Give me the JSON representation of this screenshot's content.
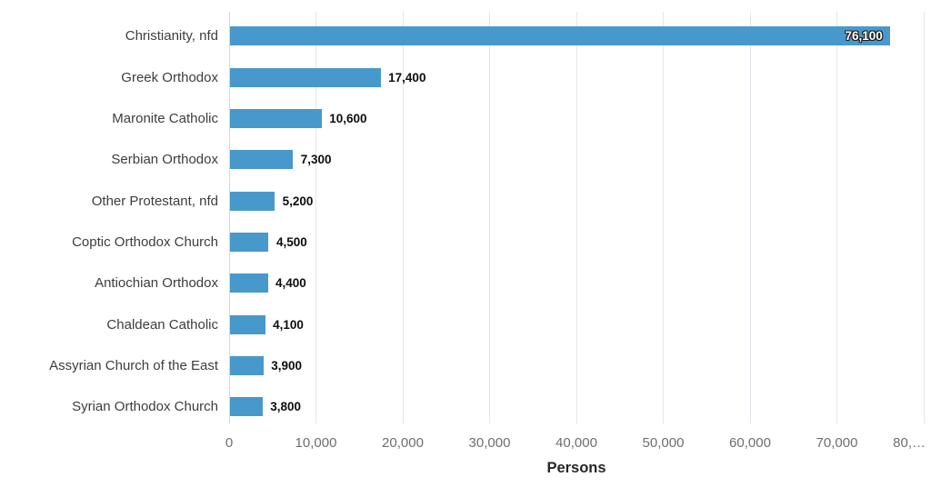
{
  "chart_data": {
    "type": "bar",
    "orientation": "horizontal",
    "title": "",
    "categories": [
      "Christianity, nfd",
      "Greek Orthodox",
      "Maronite Catholic",
      "Serbian Orthodox",
      "Other Protestant, nfd",
      "Coptic Orthodox Church",
      "Antiochian Orthodox",
      "Chaldean Catholic",
      "Assyrian Church of the East",
      "Syrian Orthodox Church"
    ],
    "values": [
      76100,
      17400,
      10600,
      7300,
      5200,
      4500,
      4400,
      4100,
      3900,
      3800
    ],
    "value_labels": [
      "76,100",
      "17,400",
      "10,600",
      "7,300",
      "5,200",
      "4,500",
      "4,400",
      "4,100",
      "3,900",
      "3,800"
    ],
    "xlabel": "Persons",
    "ylabel": "",
    "xlim": [
      0,
      80000
    ],
    "x_ticks": [
      0,
      10000,
      20000,
      30000,
      40000,
      50000,
      60000,
      70000,
      80000
    ],
    "x_tick_labels": [
      "0",
      "10,000",
      "20,000",
      "30,000",
      "40,000",
      "50,000",
      "60,000",
      "70,000",
      "80,…"
    ],
    "grid": true,
    "legend": false,
    "colors": {
      "bar": "#4799cc",
      "bar_label_inside": "#ffffff",
      "bar_label_outline": "#1c1c1c",
      "value_label": "#0d0d0d",
      "category_label": "#3d3d3d",
      "tick_label": "#6e6e6e",
      "axis_title": "#262626",
      "gridline": "#e5e6ee",
      "zero_line": "#d3d7e2",
      "background": "#ffffff"
    }
  }
}
